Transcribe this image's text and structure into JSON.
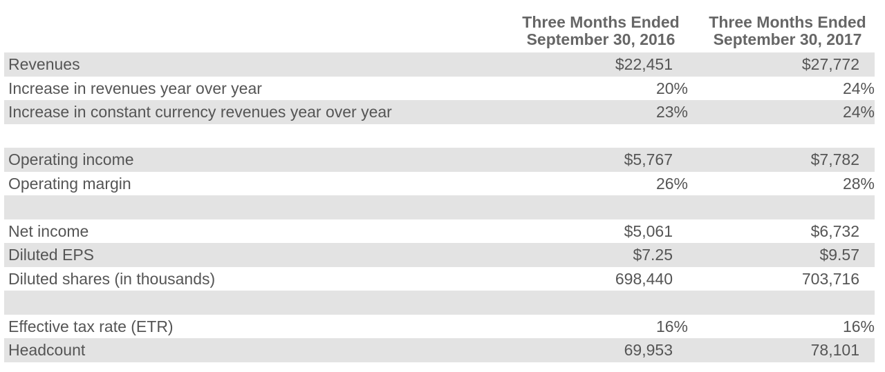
{
  "columns": [
    {
      "line1": "Three Months Ended",
      "line2": "September 30, 2016"
    },
    {
      "line1": "Three Months Ended",
      "line2": "September 30, 2017"
    }
  ],
  "rows": [
    {
      "label": "Revenues",
      "v1": "$22,451",
      "v2": "$27,772"
    },
    {
      "label": "Increase in revenues year over year",
      "v1": "20%",
      "v2": "24%"
    },
    {
      "label": "Increase in constant currency revenues year over year",
      "v1": "23%",
      "v2": "24%"
    },
    {
      "label": "",
      "v1": "",
      "v2": ""
    },
    {
      "label": "Operating income",
      "v1": "$5,767",
      "v2": "$7,782"
    },
    {
      "label": "Operating margin",
      "v1": "26%",
      "v2": "28%"
    },
    {
      "label": "",
      "v1": "",
      "v2": ""
    },
    {
      "label": "Net income",
      "v1": "$5,061",
      "v2": "$6,732"
    },
    {
      "label": "Diluted EPS",
      "v1": "$7.25",
      "v2": "$9.57"
    },
    {
      "label": "Diluted shares (in thousands)",
      "v1": "698,440",
      "v2": "703,716"
    },
    {
      "label": "",
      "v1": "",
      "v2": ""
    },
    {
      "label": "Effective tax rate (ETR)",
      "v1": "16%",
      "v2": "16%"
    },
    {
      "label": "Headcount",
      "v1": "69,953",
      "v2": "78,101"
    }
  ]
}
